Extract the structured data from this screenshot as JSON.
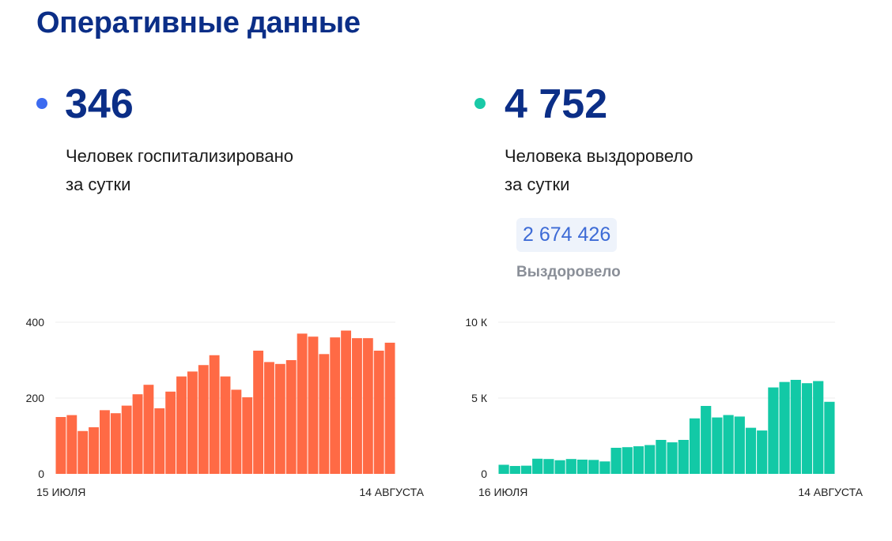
{
  "title": "Оперативные данные",
  "stats": [
    {
      "value": "346",
      "label_line1": "Человек госпитализировано",
      "label_line2": "за сутки",
      "color": "#3d6bf0"
    },
    {
      "value": "4 752",
      "label_line1": "Человека выздоровело",
      "label_line2": "за сутки",
      "color": "#19c9a7"
    }
  ],
  "total": {
    "value": "2 674 426",
    "label": "Выздоровело"
  },
  "chart_data": [
    {
      "type": "bar",
      "color": "#ff6a45",
      "ylim": [
        0,
        400
      ],
      "y_ticks": [
        {
          "value": 0,
          "label": "0"
        },
        {
          "value": 200,
          "label": "200"
        },
        {
          "value": 400,
          "label": "400"
        }
      ],
      "x_start_label": "15 ИЮЛЯ",
      "x_end_label": "14 АВГУСТА",
      "values": [
        150,
        155,
        113,
        123,
        168,
        160,
        180,
        210,
        235,
        173,
        217,
        257,
        270,
        287,
        313,
        257,
        222,
        202,
        325,
        295,
        290,
        300,
        370,
        362,
        316,
        360,
        378,
        358,
        358,
        325,
        346
      ]
    },
    {
      "type": "bar",
      "color": "#12c9a6",
      "ylim": [
        0,
        10000
      ],
      "y_ticks": [
        {
          "value": 0,
          "label": "0"
        },
        {
          "value": 5000,
          "label": "5 К"
        },
        {
          "value": 10000,
          "label": "10 К"
        }
      ],
      "x_start_label": "16 ИЮЛЯ",
      "x_end_label": "14 АВГУСТА",
      "values": [
        600,
        520,
        540,
        1000,
        980,
        900,
        980,
        940,
        920,
        820,
        1720,
        1760,
        1820,
        1900,
        2240,
        2080,
        2240,
        3660,
        4480,
        3720,
        3880,
        3780,
        3040,
        2860,
        5700,
        6060,
        6200,
        5980,
        6120,
        4752
      ]
    }
  ]
}
